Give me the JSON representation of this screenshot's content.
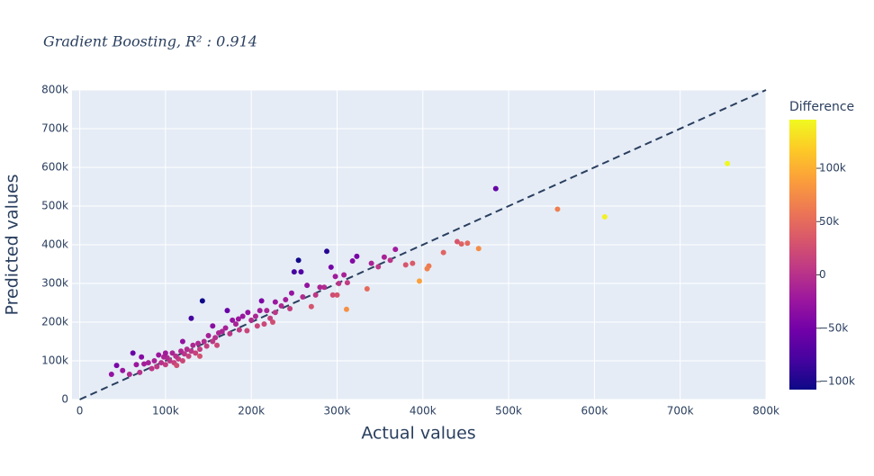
{
  "chart_data": {
    "type": "scatter",
    "title": "Gradient Boosting, R² : 0.914",
    "x_label": "Actual values",
    "y_label": "Predicted values",
    "colorbar_title": "Difference",
    "x": [
      755000,
      612000,
      557000,
      485000,
      465000,
      452000,
      445000,
      440000,
      424000,
      407000,
      405000,
      396000,
      388000,
      380000,
      368000,
      362000,
      355000,
      348000,
      340000,
      335000,
      323000,
      318000,
      312000,
      311000,
      308000,
      302000,
      298000,
      293000,
      288000,
      280000,
      275000,
      270000,
      265000,
      258000,
      255000,
      250000,
      247000,
      240000,
      235000,
      228000,
      222000,
      218000,
      215000,
      210000,
      205000,
      200000,
      196000,
      190000,
      186000,
      182000,
      178000,
      175000,
      170000,
      166000,
      162000,
      158000,
      155000,
      150000,
      148000,
      145000,
      143000,
      140000,
      138000,
      135000,
      132000,
      130000,
      127000,
      125000,
      122000,
      120000,
      118000,
      115000,
      112000,
      110000,
      108000,
      105000,
      102000,
      100000,
      98000,
      95000,
      92000,
      90000,
      87000,
      84000,
      80000,
      75000,
      72000,
      70000,
      66000,
      62000,
      58000,
      50000,
      43000,
      37000,
      130000,
      212000,
      228000,
      260000,
      285000,
      300000,
      172000,
      155000,
      120000,
      100000,
      185000,
      195000,
      207000,
      225000,
      245000,
      160000,
      140000,
      113000,
      295000
    ],
    "values": [
      610000,
      472000,
      492000,
      545000,
      390000,
      404000,
      402000,
      408000,
      380000,
      345000,
      338000,
      306000,
      352000,
      348000,
      388000,
      360000,
      368000,
      343000,
      352000,
      286000,
      370000,
      358000,
      302000,
      233000,
      322000,
      300000,
      318000,
      342000,
      383000,
      290000,
      270000,
      240000,
      295000,
      330000,
      360000,
      330000,
      275000,
      258000,
      242000,
      225000,
      210000,
      230000,
      195000,
      230000,
      215000,
      205000,
      225000,
      215000,
      180000,
      195000,
      205000,
      170000,
      185000,
      176000,
      172000,
      160000,
      150000,
      165000,
      138000,
      150000,
      255000,
      130000,
      145000,
      120000,
      140000,
      125000,
      112000,
      130000,
      118000,
      100000,
      125000,
      105000,
      112000,
      95000,
      120000,
      100000,
      108000,
      90000,
      110000,
      95000,
      115000,
      85000,
      100000,
      80000,
      95000,
      92000,
      110000,
      70000,
      90000,
      120000,
      65000,
      75000,
      88000,
      65000,
      210000,
      255000,
      252000,
      265000,
      290000,
      270000,
      230000,
      190000,
      150000,
      120000,
      208000,
      178000,
      190000,
      200000,
      235000,
      140000,
      112000,
      88000,
      270000
    ],
    "colorscale": [
      "#0d0887",
      "#46039f",
      "#7201a8",
      "#9c179e",
      "#bd3786",
      "#d8576b",
      "#ed7953",
      "#fb9f3a",
      "#fdca26",
      "#f0f921"
    ],
    "clim": [
      -107600,
      145600
    ],
    "cticks": [
      {
        "value": -100000,
        "label": "−100k"
      },
      {
        "value": -50000,
        "label": "−50k"
      },
      0,
      {
        "value": 50000,
        "label": "50k"
      },
      {
        "value": 100000,
        "label": "100k"
      }
    ],
    "identity_line": {
      "x": [
        0,
        800000
      ],
      "y": [
        0,
        800000
      ],
      "color": "#2a3f5f"
    },
    "xlim": [
      -9000,
      800000
    ],
    "ylim": [
      0,
      800000
    ],
    "xticks": [
      0,
      {
        "value": 100000,
        "label": "100k"
      },
      {
        "value": 200000,
        "label": "200k"
      },
      {
        "value": 300000,
        "label": "300k"
      },
      {
        "value": 400000,
        "label": "400k"
      },
      {
        "value": 500000,
        "label": "500k"
      },
      {
        "value": 600000,
        "label": "600k"
      },
      {
        "value": 700000,
        "label": "700k"
      },
      {
        "value": 800000,
        "label": "800k"
      }
    ],
    "yticks": [
      0,
      {
        "value": 100000,
        "label": "100k"
      },
      {
        "value": 200000,
        "label": "200k"
      },
      {
        "value": 300000,
        "label": "300k"
      },
      {
        "value": 400000,
        "label": "400k"
      },
      {
        "value": 500000,
        "label": "500k"
      },
      {
        "value": 600000,
        "label": "600k"
      },
      {
        "value": 700000,
        "label": "700k"
      },
      {
        "value": 800000,
        "label": "800k"
      }
    ],
    "grid": true
  }
}
